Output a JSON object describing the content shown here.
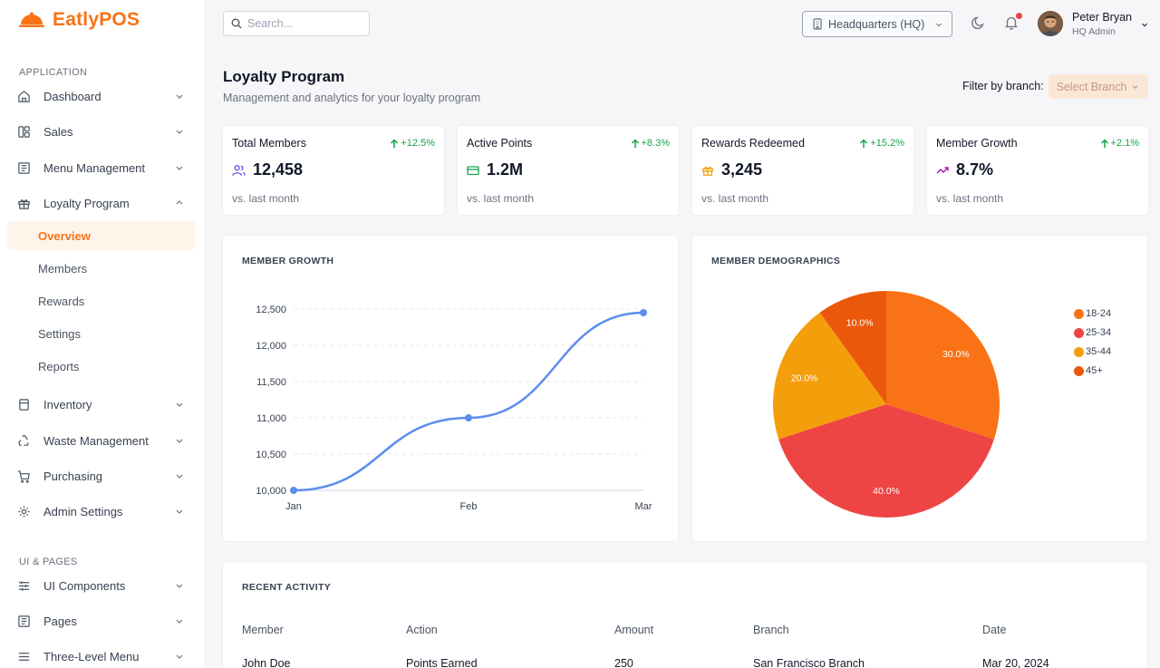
{
  "app": {
    "brand": "EatlyPOS",
    "brand_color": "#f97316"
  },
  "sidebar": {
    "section_application": "APPLICATION",
    "section_ui_pages": "UI & PAGES",
    "items": {
      "dashboard": "Dashboard",
      "sales": "Sales",
      "menu_management": "Menu Management",
      "loyalty_program": "Loyalty Program",
      "inventory": "Inventory",
      "waste_management": "Waste Management",
      "purchasing": "Purchasing",
      "admin_settings": "Admin Settings",
      "ui_components": "UI Components",
      "pages": "Pages",
      "three_level_menu": "Three-Level Menu"
    },
    "loyalty_sub": {
      "overview": "Overview",
      "members": "Members",
      "rewards": "Rewards",
      "settings": "Settings",
      "reports": "Reports"
    }
  },
  "topbar": {
    "search_placeholder": "Search...",
    "branch": "Headquarters (HQ)",
    "user_name": "Peter Bryan",
    "user_role": "HQ Admin"
  },
  "header": {
    "title": "Loyalty Program",
    "subtitle": "Management and analytics for your loyalty program",
    "filter_label": "Filter by branch:",
    "filter_button": "Select Branch"
  },
  "stats": [
    {
      "label": "Total Members",
      "change": "+12.5%",
      "value": "12,458",
      "note": "vs. last month",
      "icon": "users-icon"
    },
    {
      "label": "Active Points",
      "change": "+8.3%",
      "value": "1.2M",
      "note": "vs. last month",
      "icon": "card-icon"
    },
    {
      "label": "Rewards Redeemed",
      "change": "+15.2%",
      "value": "3,245",
      "note": "vs. last month",
      "icon": "gift-icon"
    },
    {
      "label": "Member Growth",
      "change": "+2.1%",
      "value": "8.7%",
      "note": "vs. last month",
      "icon": "trending-up-icon"
    }
  ],
  "growth_title": "MEMBER GROWTH",
  "demographics_title": "MEMBER DEMOGRAPHICS",
  "chart_data": [
    {
      "type": "line",
      "title": "MEMBER GROWTH",
      "categories": [
        "Jan",
        "Feb",
        "Mar"
      ],
      "values": [
        10000,
        11000,
        12450
      ],
      "ylim": [
        10000,
        12500
      ],
      "yticks": [
        "12,500",
        "12,000",
        "11,500",
        "11,000",
        "10,500",
        "10,000"
      ],
      "color": "#5b8def",
      "grid": true
    },
    {
      "type": "pie",
      "title": "MEMBER DEMOGRAPHICS",
      "slices": [
        {
          "label": "18-24",
          "value": 30.0,
          "display": "30.0%",
          "color": "#f97316"
        },
        {
          "label": "25-34",
          "value": 40.0,
          "display": "40.0%",
          "color": "#ef4444"
        },
        {
          "label": "35-44",
          "value": 20.0,
          "display": "20.0%",
          "color": "#f59e0b"
        },
        {
          "label": "45+",
          "value": 10.0,
          "display": "10.0%",
          "color": "#ea580c"
        }
      ],
      "legend": "right"
    }
  ],
  "activity": {
    "title": "RECENT ACTIVITY",
    "columns": [
      "Member",
      "Action",
      "Amount",
      "Branch",
      "Date"
    ],
    "rows": [
      [
        "John Doe",
        "Points Earned",
        "250",
        "San Francisco Branch",
        "Mar 20, 2024"
      ]
    ]
  }
}
